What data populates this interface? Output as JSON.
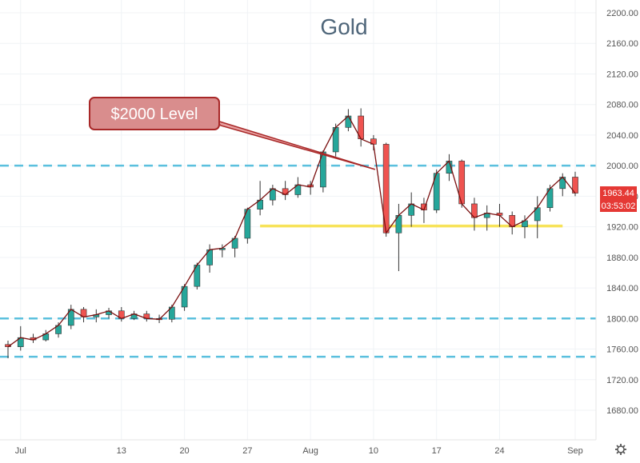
{
  "chart_data": {
    "type": "candlestick",
    "title": "Gold",
    "ylim": [
      1640,
      2220
    ],
    "y_ticks": [
      1680,
      1720,
      1760,
      1800,
      1840,
      1880,
      1920,
      1960,
      2000,
      2040,
      2080,
      2120,
      2160,
      2200
    ],
    "x_ticks": [
      "Jul",
      "13",
      "20",
      "27",
      "Aug",
      "10",
      "17",
      "24",
      "Sep"
    ],
    "grid": true,
    "last_price": "1963.44",
    "countdown": "03:53:02",
    "annotation": {
      "text": "$2000 Level",
      "points_to": 1995
    },
    "horizontal_lines": [
      {
        "kind": "dashed",
        "price": 2000,
        "color": "#5bc0de"
      },
      {
        "kind": "dashed",
        "price": 1800,
        "color": "#5bc0de"
      },
      {
        "kind": "dashed",
        "price": 1750,
        "color": "#5bc0de"
      },
      {
        "kind": "solid",
        "price": 1921,
        "color": "#f7e35a",
        "from_date": "Jul 28",
        "to_date": "Aug 31"
      }
    ],
    "series": [
      {
        "dates": [
          "Jun 30",
          "Jul 1",
          "Jul 2",
          "Jul 3",
          "Jul 6",
          "Jul 7",
          "Jul 8",
          "Jul 9",
          "Jul 10",
          "Jul 13",
          "Jul 14",
          "Jul 15",
          "Jul 16",
          "Jul 17",
          "Jul 20",
          "Jul 21",
          "Jul 22",
          "Jul 23",
          "Jul 24",
          "Jul 27",
          "Jul 28",
          "Jul 29",
          "Jul 30",
          "Jul 31",
          "Aug 3",
          "Aug 4",
          "Aug 5",
          "Aug 6",
          "Aug 7",
          "Aug 10",
          "Aug 11",
          "Aug 12",
          "Aug 13",
          "Aug 14",
          "Aug 17",
          "Aug 18",
          "Aug 19",
          "Aug 20",
          "Aug 21",
          "Aug 24",
          "Aug 25",
          "Aug 26",
          "Aug 27",
          "Aug 28",
          "Aug 31",
          "Sep 1"
        ],
        "ohlc": [
          [
            1766,
            1771,
            1748,
            1763
          ],
          [
            1763,
            1790,
            1758,
            1775
          ],
          [
            1775,
            1780,
            1768,
            1772
          ],
          [
            1772,
            1785,
            1770,
            1780
          ],
          [
            1780,
            1795,
            1775,
            1791
          ],
          [
            1791,
            1818,
            1786,
            1812
          ],
          [
            1812,
            1815,
            1795,
            1802
          ],
          [
            1802,
            1812,
            1795,
            1805
          ],
          [
            1805,
            1814,
            1800,
            1810
          ],
          [
            1810,
            1815,
            1796,
            1800
          ],
          [
            1800,
            1810,
            1798,
            1806
          ],
          [
            1806,
            1810,
            1796,
            1800
          ],
          [
            1800,
            1805,
            1794,
            1799
          ],
          [
            1799,
            1818,
            1795,
            1815
          ],
          [
            1815,
            1845,
            1810,
            1842
          ],
          [
            1842,
            1873,
            1838,
            1870
          ],
          [
            1870,
            1897,
            1860,
            1890
          ],
          [
            1890,
            1897,
            1880,
            1892
          ],
          [
            1892,
            1908,
            1880,
            1905
          ],
          [
            1905,
            1945,
            1898,
            1943
          ],
          [
            1943,
            1980,
            1935,
            1955
          ],
          [
            1955,
            1975,
            1948,
            1970
          ],
          [
            1970,
            1980,
            1955,
            1962
          ],
          [
            1962,
            1985,
            1958,
            1975
          ],
          [
            1975,
            1980,
            1962,
            1972
          ],
          [
            1972,
            2020,
            1965,
            2018
          ],
          [
            2018,
            2055,
            2012,
            2050
          ],
          [
            2050,
            2074,
            2045,
            2065
          ],
          [
            2065,
            2075,
            2025,
            2035
          ],
          [
            2035,
            2040,
            2020,
            2028
          ],
          [
            2028,
            2030,
            1907,
            1912
          ],
          [
            1912,
            1950,
            1862,
            1935
          ],
          [
            1935,
            1965,
            1920,
            1950
          ],
          [
            1950,
            1958,
            1925,
            1942
          ],
          [
            1942,
            1995,
            1938,
            1990
          ],
          [
            1990,
            2015,
            1980,
            2006
          ],
          [
            2006,
            2008,
            1945,
            1950
          ],
          [
            1950,
            1958,
            1915,
            1932
          ],
          [
            1932,
            1948,
            1915,
            1938
          ],
          [
            1938,
            1950,
            1920,
            1935
          ],
          [
            1935,
            1940,
            1910,
            1920
          ],
          [
            1920,
            1935,
            1905,
            1928
          ],
          [
            1928,
            1960,
            1905,
            1945
          ],
          [
            1945,
            1975,
            1940,
            1970
          ],
          [
            1970,
            1990,
            1960,
            1985
          ],
          [
            1985,
            1992,
            1960,
            1964
          ]
        ]
      }
    ]
  }
}
